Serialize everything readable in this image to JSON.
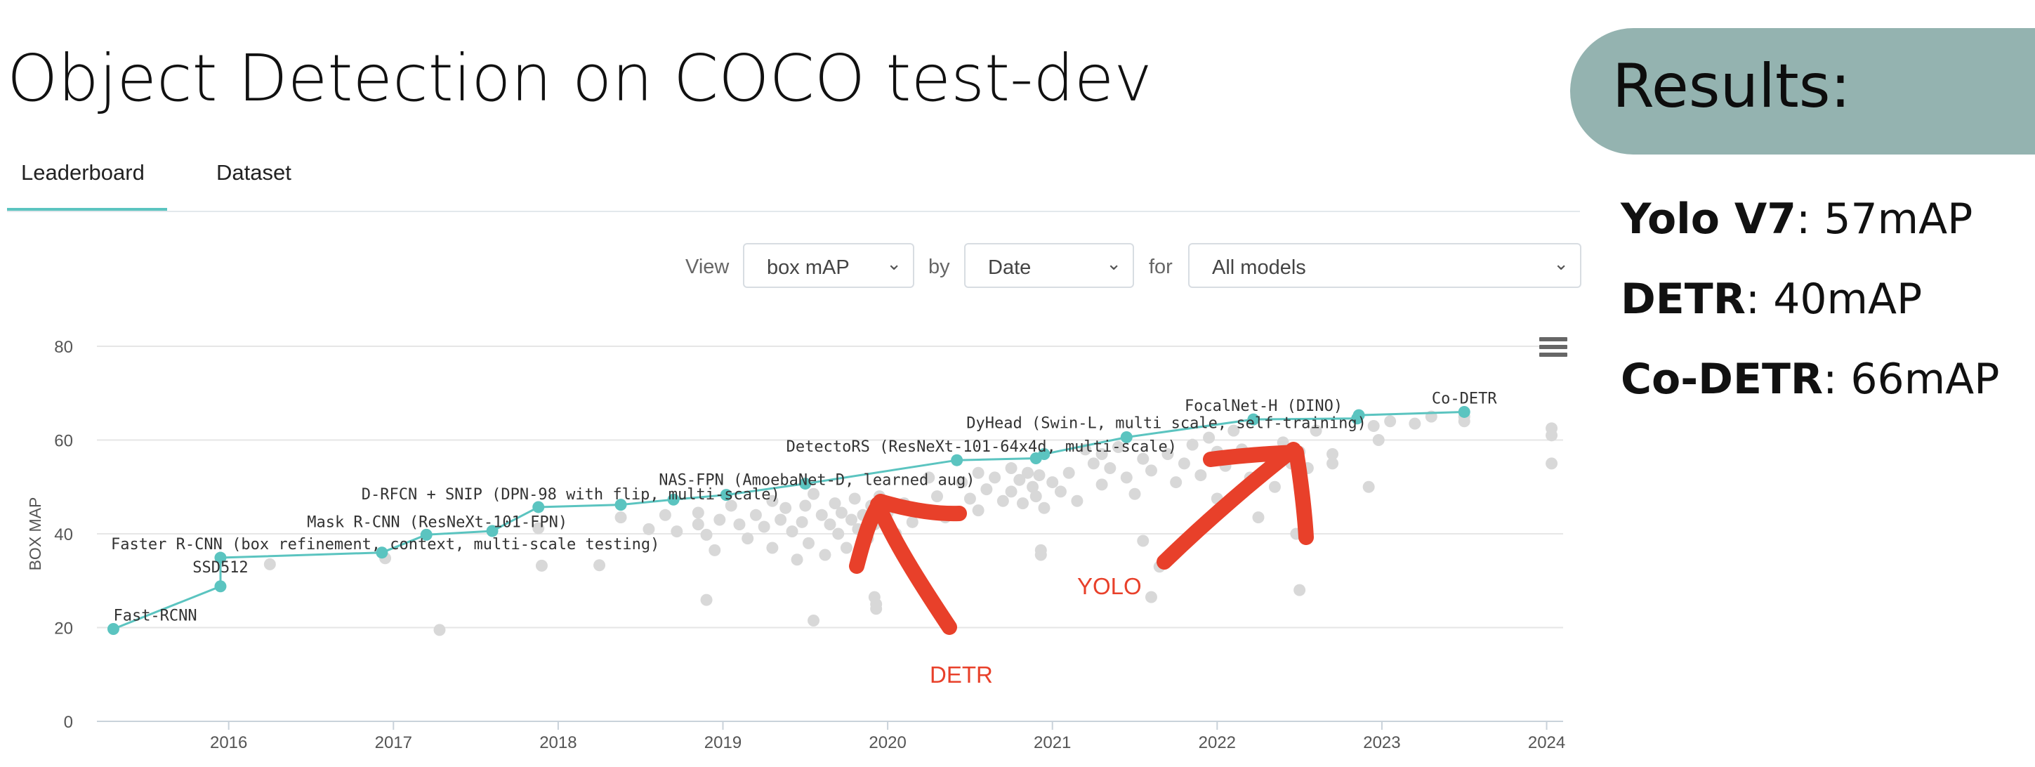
{
  "header": {
    "title": "Object Detection on COCO test-dev"
  },
  "tabs": [
    {
      "label": "Leaderboard",
      "active": true
    },
    {
      "label": "Dataset",
      "active": false
    }
  ],
  "controls": {
    "view_label": "View",
    "view_value": "box mAP",
    "by_label": "by",
    "by_value": "Date",
    "for_label": "for",
    "for_value": "All models"
  },
  "results": {
    "title": "Results:",
    "items": [
      {
        "name": "Yolo V7",
        "value": ": 57mAP"
      },
      {
        "name": "DETR",
        "value": ": 40mAP"
      },
      {
        "name": "Co-DETR",
        "value": ": 66mAP"
      }
    ]
  },
  "annotations": {
    "detr": "DETR",
    "yolo": "YOLO"
  },
  "colors": {
    "sota": "#5bc4c0",
    "other": "#d8d8d8",
    "annotation": "#e8402a",
    "pill": "#94b3b0"
  },
  "icons": {
    "menu": "hamburger-menu-icon"
  },
  "chart_data": {
    "type": "scatter",
    "ylabel": "BOX MAP",
    "xlabel": "",
    "ylim": [
      0,
      80
    ],
    "xlim": [
      2015.2,
      2024.1
    ],
    "y_ticks": [
      "0",
      "20",
      "40",
      "60",
      "80"
    ],
    "x_ticks": [
      "2016",
      "2017",
      "2018",
      "2019",
      "2020",
      "2021",
      "2022",
      "2023",
      "2024"
    ],
    "grid": true,
    "series": [
      {
        "name": "",
        "kind": "sota-line",
        "points": [
          {
            "x": 2015.3,
            "y": 19.7,
            "label": "Fast-RCNN"
          },
          {
            "x": 2015.95,
            "y": 28.8,
            "label": "SSD512"
          },
          {
            "x": 2015.95,
            "y": 34.9,
            "label": "Faster R-CNN (box refinement, context, multi-scale testing)"
          },
          {
            "x": 2016.93,
            "y": 36.0,
            "label": ""
          },
          {
            "x": 2017.2,
            "y": 39.8,
            "label": "Mask R-CNN (ResNeXt-101-FPN)"
          },
          {
            "x": 2017.6,
            "y": 40.6,
            "label": ""
          },
          {
            "x": 2017.88,
            "y": 45.7,
            "label": "D-RFCN + SNIP (DPN-98 with flip, multi-scale)"
          },
          {
            "x": 2018.38,
            "y": 46.2,
            "label": ""
          },
          {
            "x": 2018.7,
            "y": 47.3,
            "label": ""
          },
          {
            "x": 2019.02,
            "y": 48.3,
            "label": "NAS-FPN (AmoebaNet-D, learned aug)"
          },
          {
            "x": 2019.5,
            "y": 50.7,
            "label": ""
          },
          {
            "x": 2020.42,
            "y": 55.7,
            "label": "DetectoRS (ResNeXt-101-64x4d, multi-scale)"
          },
          {
            "x": 2020.9,
            "y": 56.1,
            "label": ""
          },
          {
            "x": 2020.95,
            "y": 57.0,
            "label": ""
          },
          {
            "x": 2021.45,
            "y": 60.6,
            "label": "DyHead (Swin-L, multi scale, self-training)"
          },
          {
            "x": 2022.22,
            "y": 64.4,
            "label": "FocalNet-H (DINO)"
          },
          {
            "x": 2022.85,
            "y": 64.6,
            "label": ""
          },
          {
            "x": 2022.86,
            "y": 65.3,
            "label": ""
          },
          {
            "x": 2023.5,
            "y": 66.0,
            "label": "Co-DETR"
          }
        ]
      },
      {
        "name": "",
        "kind": "other-models",
        "points": [
          [
            2016.25,
            33.5
          ],
          [
            2016.95,
            34.8
          ],
          [
            2017.28,
            19.5
          ],
          [
            2017.9,
            33.2
          ],
          [
            2017.88,
            41.2
          ],
          [
            2018.25,
            33.3
          ],
          [
            2018.38,
            43.5
          ],
          [
            2018.55,
            41.0
          ],
          [
            2018.65,
            44.0
          ],
          [
            2018.72,
            40.5
          ],
          [
            2018.85,
            44.5
          ],
          [
            2018.85,
            42.0
          ],
          [
            2018.9,
            39.8
          ],
          [
            2018.95,
            36.5
          ],
          [
            2018.98,
            43.0
          ],
          [
            2018.9,
            25.9
          ],
          [
            2019.05,
            46.0
          ],
          [
            2019.1,
            42.0
          ],
          [
            2019.15,
            39.0
          ],
          [
            2019.2,
            44.0
          ],
          [
            2019.25,
            41.5
          ],
          [
            2019.3,
            47.0
          ],
          [
            2019.3,
            37.0
          ],
          [
            2019.35,
            43.0
          ],
          [
            2019.38,
            45.5
          ],
          [
            2019.42,
            40.5
          ],
          [
            2019.45,
            34.5
          ],
          [
            2019.48,
            42.5
          ],
          [
            2019.5,
            46.0
          ],
          [
            2019.52,
            38.0
          ],
          [
            2019.55,
            48.5
          ],
          [
            2019.55,
            21.5
          ],
          [
            2019.6,
            44.0
          ],
          [
            2019.62,
            35.5
          ],
          [
            2019.65,
            42.0
          ],
          [
            2019.68,
            46.5
          ],
          [
            2019.7,
            40.0
          ],
          [
            2019.72,
            44.5
          ],
          [
            2019.75,
            37.0
          ],
          [
            2019.78,
            43.0
          ],
          [
            2019.8,
            47.5
          ],
          [
            2019.82,
            41.0
          ],
          [
            2019.85,
            44.0
          ],
          [
            2019.88,
            39.0
          ],
          [
            2019.9,
            46.0
          ],
          [
            2019.92,
            42.0
          ],
          [
            2019.92,
            26.5
          ],
          [
            2019.93,
            25.0
          ],
          [
            2019.93,
            24.0
          ],
          [
            2019.95,
            48.0
          ],
          [
            2020.0,
            44.5
          ],
          [
            2020.05,
            40.0
          ],
          [
            2020.1,
            46.5
          ],
          [
            2020.15,
            42.5
          ],
          [
            2020.2,
            45.0
          ],
          [
            2020.25,
            52.0
          ],
          [
            2020.3,
            48.0
          ],
          [
            2020.35,
            43.5
          ],
          [
            2020.45,
            51.0
          ],
          [
            2020.5,
            47.5
          ],
          [
            2020.55,
            53.0
          ],
          [
            2020.55,
            45.0
          ],
          [
            2020.6,
            49.5
          ],
          [
            2020.65,
            52.0
          ],
          [
            2020.7,
            47.0
          ],
          [
            2020.75,
            54.0
          ],
          [
            2020.75,
            49.0
          ],
          [
            2020.8,
            51.5
          ],
          [
            2020.82,
            46.5
          ],
          [
            2020.85,
            53.0
          ],
          [
            2020.88,
            50.0
          ],
          [
            2020.9,
            48.0
          ],
          [
            2020.92,
            52.5
          ],
          [
            2020.93,
            36.5
          ],
          [
            2020.93,
            35.5
          ],
          [
            2020.95,
            45.5
          ],
          [
            2021.0,
            51.0
          ],
          [
            2021.05,
            49.0
          ],
          [
            2021.1,
            53.0
          ],
          [
            2021.15,
            47.0
          ],
          [
            2021.2,
            58.0
          ],
          [
            2021.25,
            55.0
          ],
          [
            2021.3,
            57.0
          ],
          [
            2021.3,
            50.5
          ],
          [
            2021.35,
            54.0
          ],
          [
            2021.4,
            58.5
          ],
          [
            2021.45,
            52.0
          ],
          [
            2021.5,
            48.5
          ],
          [
            2021.55,
            56.0
          ],
          [
            2021.55,
            38.5
          ],
          [
            2021.6,
            53.5
          ],
          [
            2021.6,
            26.5
          ],
          [
            2021.65,
            33.0
          ],
          [
            2021.7,
            57.0
          ],
          [
            2021.75,
            51.0
          ],
          [
            2021.8,
            55.0
          ],
          [
            2021.85,
            59.0
          ],
          [
            2021.9,
            52.5
          ],
          [
            2021.95,
            60.5
          ],
          [
            2022.0,
            57.5
          ],
          [
            2022.0,
            47.5
          ],
          [
            2022.05,
            54.5
          ],
          [
            2022.1,
            62.0
          ],
          [
            2022.15,
            58.0
          ],
          [
            2022.2,
            52.0
          ],
          [
            2022.25,
            43.5
          ],
          [
            2022.3,
            56.5
          ],
          [
            2022.35,
            50.0
          ],
          [
            2022.4,
            59.5
          ],
          [
            2022.45,
            55.0
          ],
          [
            2022.48,
            40.0
          ],
          [
            2022.5,
            57.5
          ],
          [
            2022.5,
            28.0
          ],
          [
            2022.55,
            54.0
          ],
          [
            2022.6,
            62.0
          ],
          [
            2022.7,
            57.0
          ],
          [
            2022.7,
            55.0
          ],
          [
            2022.92,
            50.0
          ],
          [
            2022.95,
            63.0
          ],
          [
            2022.98,
            60.0
          ],
          [
            2023.05,
            64.0
          ],
          [
            2023.2,
            63.5
          ],
          [
            2023.3,
            65.0
          ],
          [
            2023.5,
            65.0
          ],
          [
            2023.5,
            64.0
          ],
          [
            2024.03,
            62.5
          ],
          [
            2024.03,
            61.0
          ],
          [
            2024.03,
            55.0
          ]
        ]
      }
    ]
  }
}
